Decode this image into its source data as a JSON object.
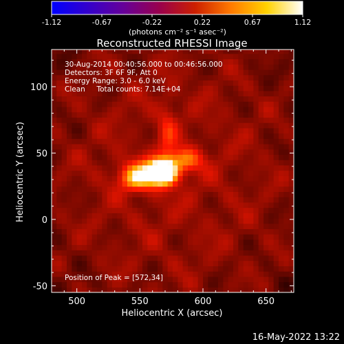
{
  "chart_data": {
    "type": "heatmap",
    "title": "Reconstructed RHESSI Image",
    "xlabel": "Heliocentric X (arcsec)",
    "ylabel": "Heliocentric Y (arcsec)",
    "xlim": [
      480,
      672
    ],
    "ylim": [
      -55,
      128
    ],
    "x_ticks": [
      500,
      550,
      600,
      650
    ],
    "y_ticks": [
      -50,
      0,
      50,
      100
    ],
    "colorbar": {
      "range": [
        -1.12,
        1.12
      ],
      "ticks": [
        "-1.12",
        "-0.67",
        "-0.22",
        "0.22",
        "0.67",
        "1.12"
      ],
      "unit": "(photons cm⁻² s⁻¹ asec⁻²)",
      "colors": [
        "#0000ff",
        "#3300cc",
        "#660099",
        "#99004d",
        "#cc1f00",
        "#ff7a00",
        "#ffd200",
        "#ffffff"
      ]
    },
    "annotations": [
      "30-Aug-2014 00:40:56.000 to 00:46:56.000",
      "Detectors: 3F 6F 9F, Att 0",
      "Energy Range: 3.0 - 6.0 keV",
      "Clean     Total counts: 7.14E+04"
    ],
    "peak": {
      "label": "Position of Peak = [572,34]",
      "x": 572,
      "y": 34
    },
    "sources": [
      {
        "x": 568,
        "y": 36,
        "sx": 7,
        "sy": 6,
        "amp": 1.12
      },
      {
        "x": 558,
        "y": 35,
        "sx": 14,
        "sy": 7,
        "amp": 0.55
      },
      {
        "x": 585,
        "y": 45,
        "sx": 10,
        "sy": 6,
        "amp": 0.45
      },
      {
        "x": 547,
        "y": 30,
        "sx": 9,
        "sy": 6,
        "amp": 0.4
      },
      {
        "x": 572,
        "y": 65,
        "sx": 5,
        "sy": 18,
        "amp": 0.22
      }
    ],
    "background_level": 0.32
  },
  "footer": {
    "timestamp": "16-May-2022 13:22"
  }
}
